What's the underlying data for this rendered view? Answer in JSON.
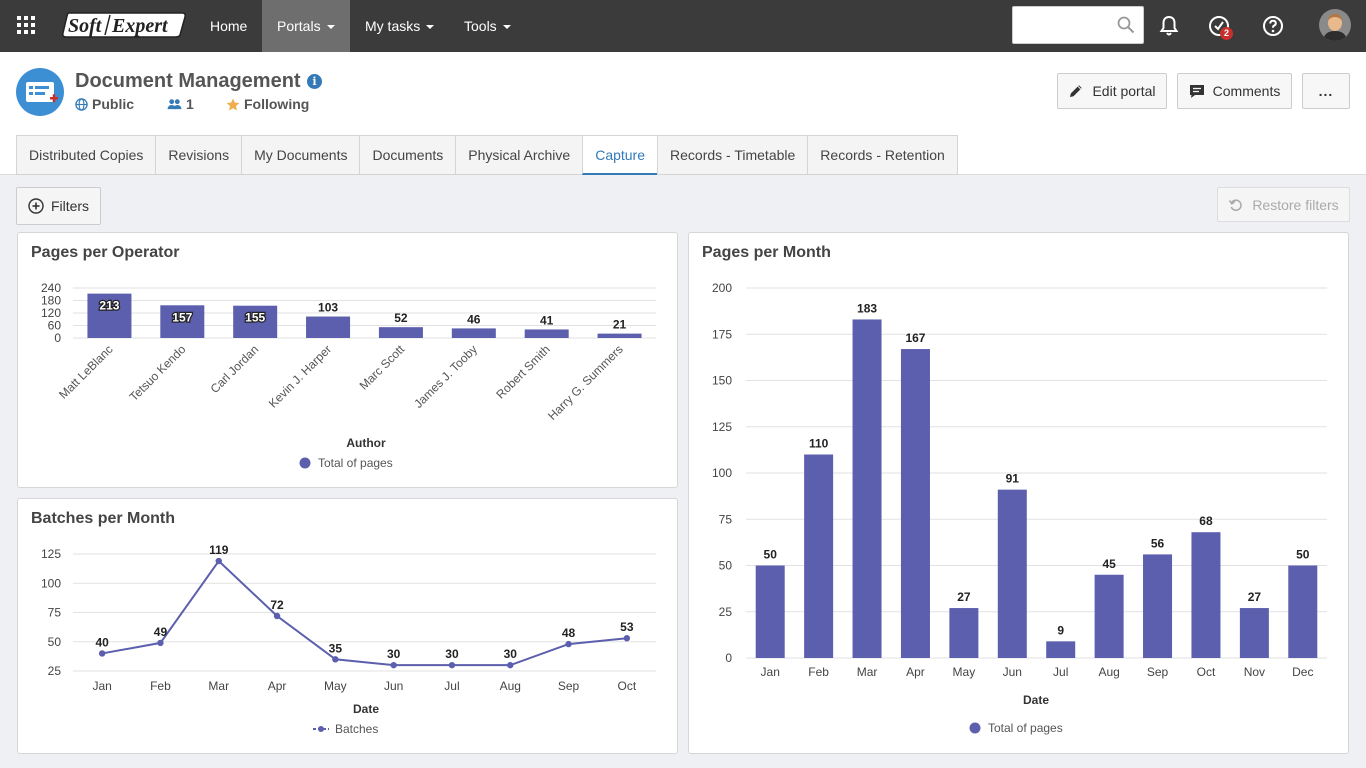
{
  "topbar": {
    "logo_text": "SoftExpert",
    "nav": [
      {
        "label": "Home",
        "has_caret": false,
        "active": false
      },
      {
        "label": "Portals",
        "has_caret": true,
        "active": true
      },
      {
        "label": "My tasks",
        "has_caret": true,
        "active": false
      },
      {
        "label": "Tools",
        "has_caret": true,
        "active": false
      }
    ],
    "search_placeholder": "",
    "task_badge": "2",
    "icons": [
      "apps-grid-icon",
      "search-icon",
      "bell-icon",
      "tasks-icon",
      "help-icon",
      "user-avatar"
    ]
  },
  "portal": {
    "title": "Document Management",
    "visibility": "Public",
    "members": "1",
    "following": "Following",
    "edit_label": "Edit portal",
    "comments_label": "Comments",
    "more_label": "..."
  },
  "tabs": [
    "Distributed Copies",
    "Revisions",
    "My Documents",
    "Documents",
    "Physical Archive",
    "Capture",
    "Records - Timetable",
    "Records - Retention"
  ],
  "active_tab": "Capture",
  "filters_label": "Filters",
  "restore_label": "Restore filters",
  "colors": {
    "bar": "#5b5fad",
    "accent": "#337ab7"
  },
  "chart_data": [
    {
      "id": "operator",
      "type": "bar",
      "title": "Pages per Operator",
      "xlabel": "Author",
      "ylabel": "",
      "categories": [
        "Matt LeBlanc",
        "Tetsuo Kendo",
        "Carl Jordan",
        "Kevin J. Harper",
        "Marc Scott",
        "James J. Tooby",
        "Robert Smith",
        "Harry G. Summers"
      ],
      "series": [
        {
          "name": "Total of pages",
          "values": [
            213,
            157,
            155,
            103,
            52,
            46,
            41,
            21
          ]
        }
      ],
      "ylim": [
        0,
        240
      ],
      "yticks": [
        0,
        60,
        120,
        180,
        240
      ],
      "grid": true,
      "legend": "bottom"
    },
    {
      "id": "batches",
      "type": "line",
      "title": "Batches per Month",
      "xlabel": "Date",
      "ylabel": "",
      "categories": [
        "Jan",
        "Feb",
        "Mar",
        "Apr",
        "May",
        "Jun",
        "Jul",
        "Aug",
        "Sep",
        "Oct"
      ],
      "series": [
        {
          "name": "Batches",
          "values": [
            40,
            49,
            119,
            72,
            35,
            30,
            30,
            30,
            48,
            53
          ]
        }
      ],
      "ylim": [
        25,
        125
      ],
      "yticks": [
        25,
        50,
        75,
        100,
        125
      ],
      "grid": true,
      "legend": "bottom"
    },
    {
      "id": "month",
      "type": "bar",
      "title": "Pages per Month",
      "xlabel": "Date",
      "ylabel": "",
      "categories": [
        "Jan",
        "Feb",
        "Mar",
        "Apr",
        "May",
        "Jun",
        "Jul",
        "Aug",
        "Sep",
        "Oct",
        "Nov",
        "Dec"
      ],
      "series": [
        {
          "name": "Total of pages",
          "values": [
            50,
            110,
            183,
            167,
            27,
            91,
            9,
            45,
            56,
            68,
            27,
            50
          ]
        }
      ],
      "ylim": [
        0,
        200
      ],
      "yticks": [
        0,
        25,
        50,
        75,
        100,
        125,
        150,
        175,
        200
      ],
      "grid": true,
      "legend": "bottom"
    }
  ]
}
